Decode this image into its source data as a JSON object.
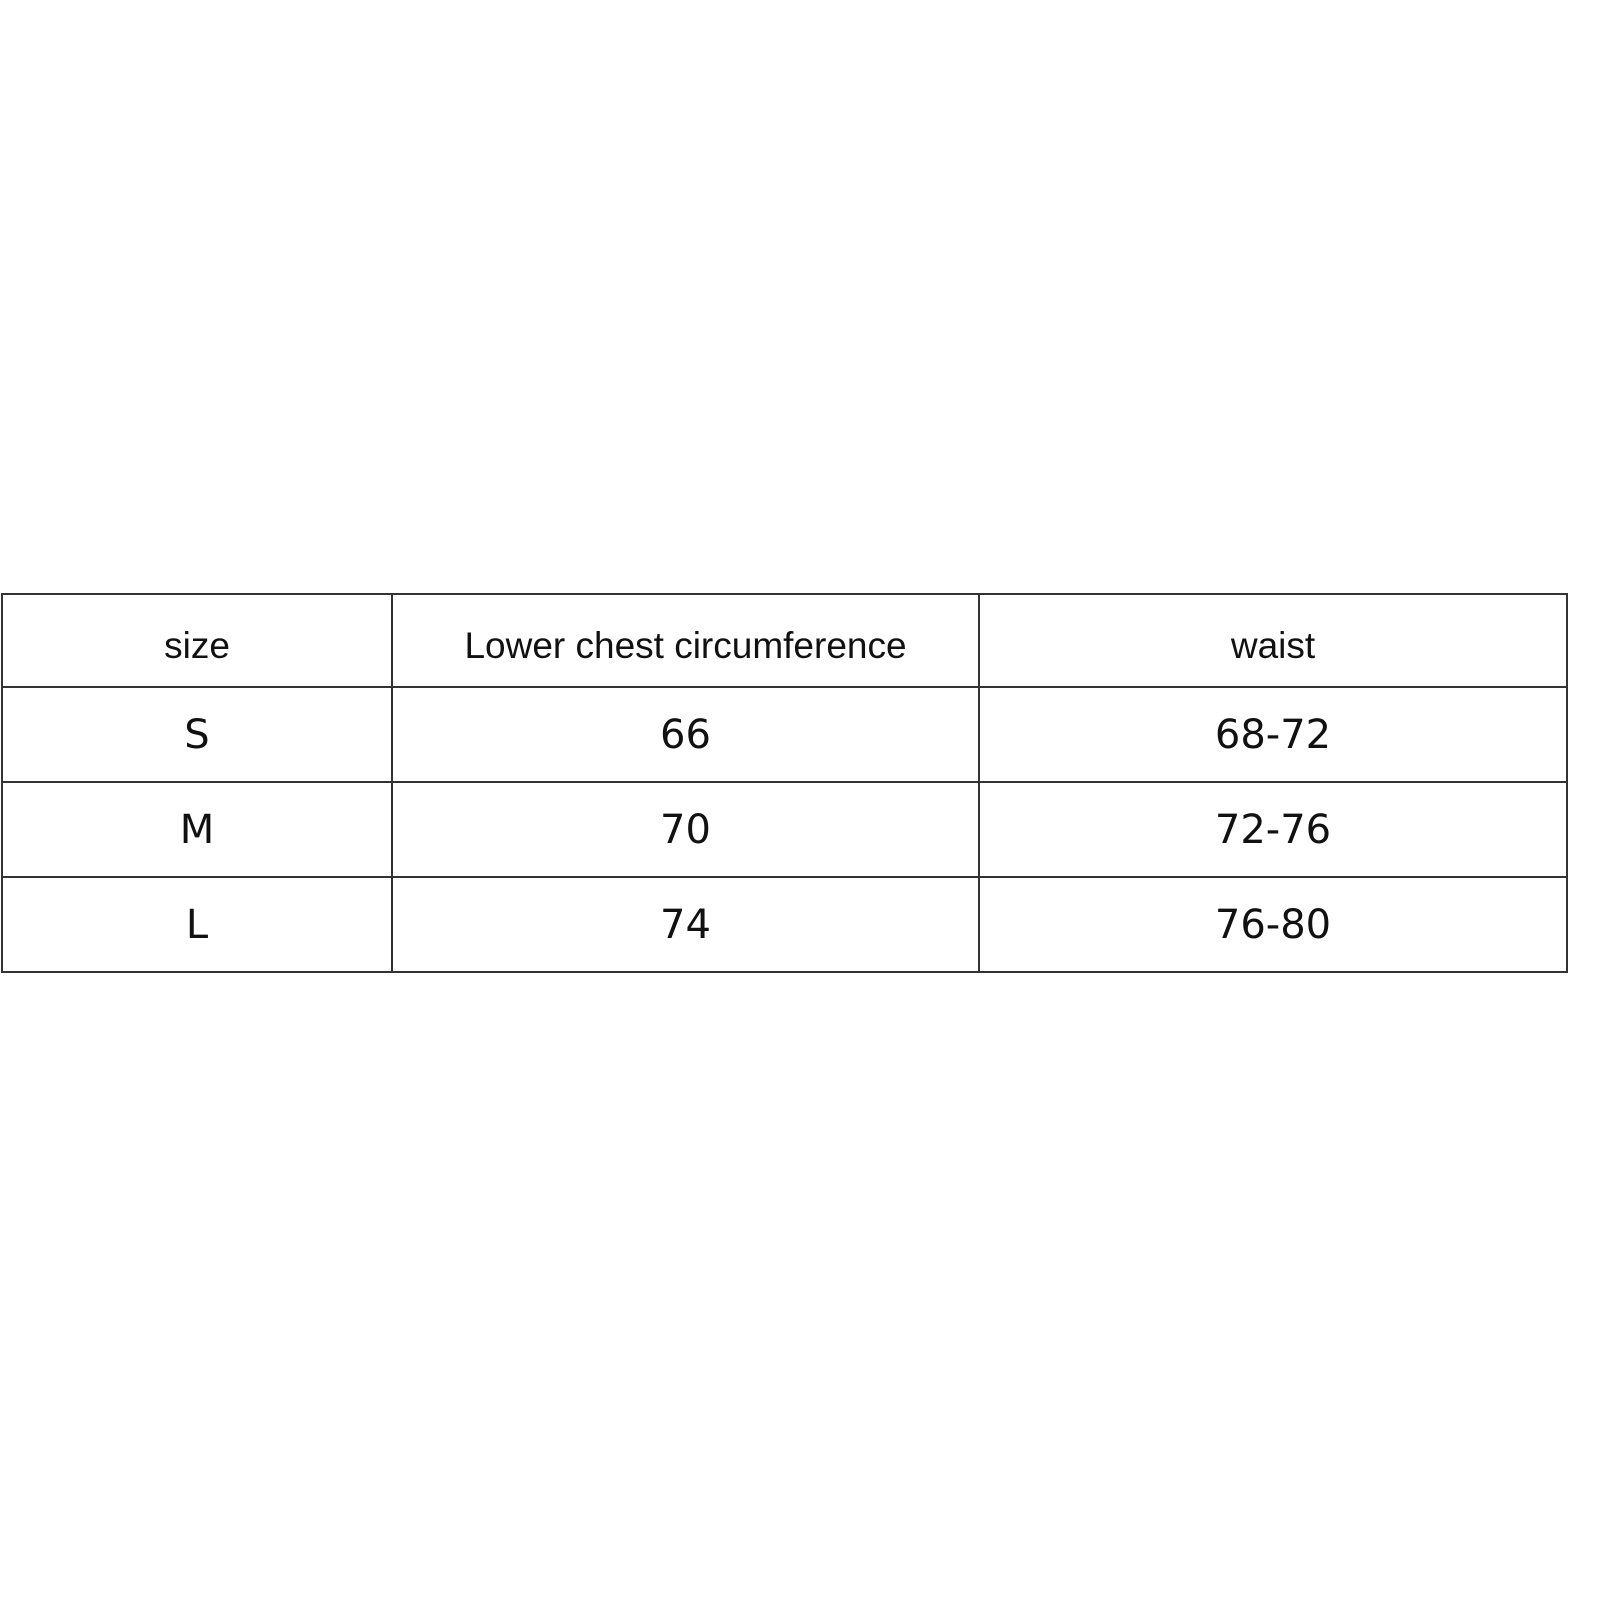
{
  "size_table": {
    "headers": [
      "size",
      "Lower chest circumference",
      "waist"
    ],
    "rows": [
      [
        "S",
        "66",
        "68-72"
      ],
      [
        "M",
        "70",
        "72-76"
      ],
      [
        "L",
        "74",
        "76-80"
      ]
    ]
  }
}
